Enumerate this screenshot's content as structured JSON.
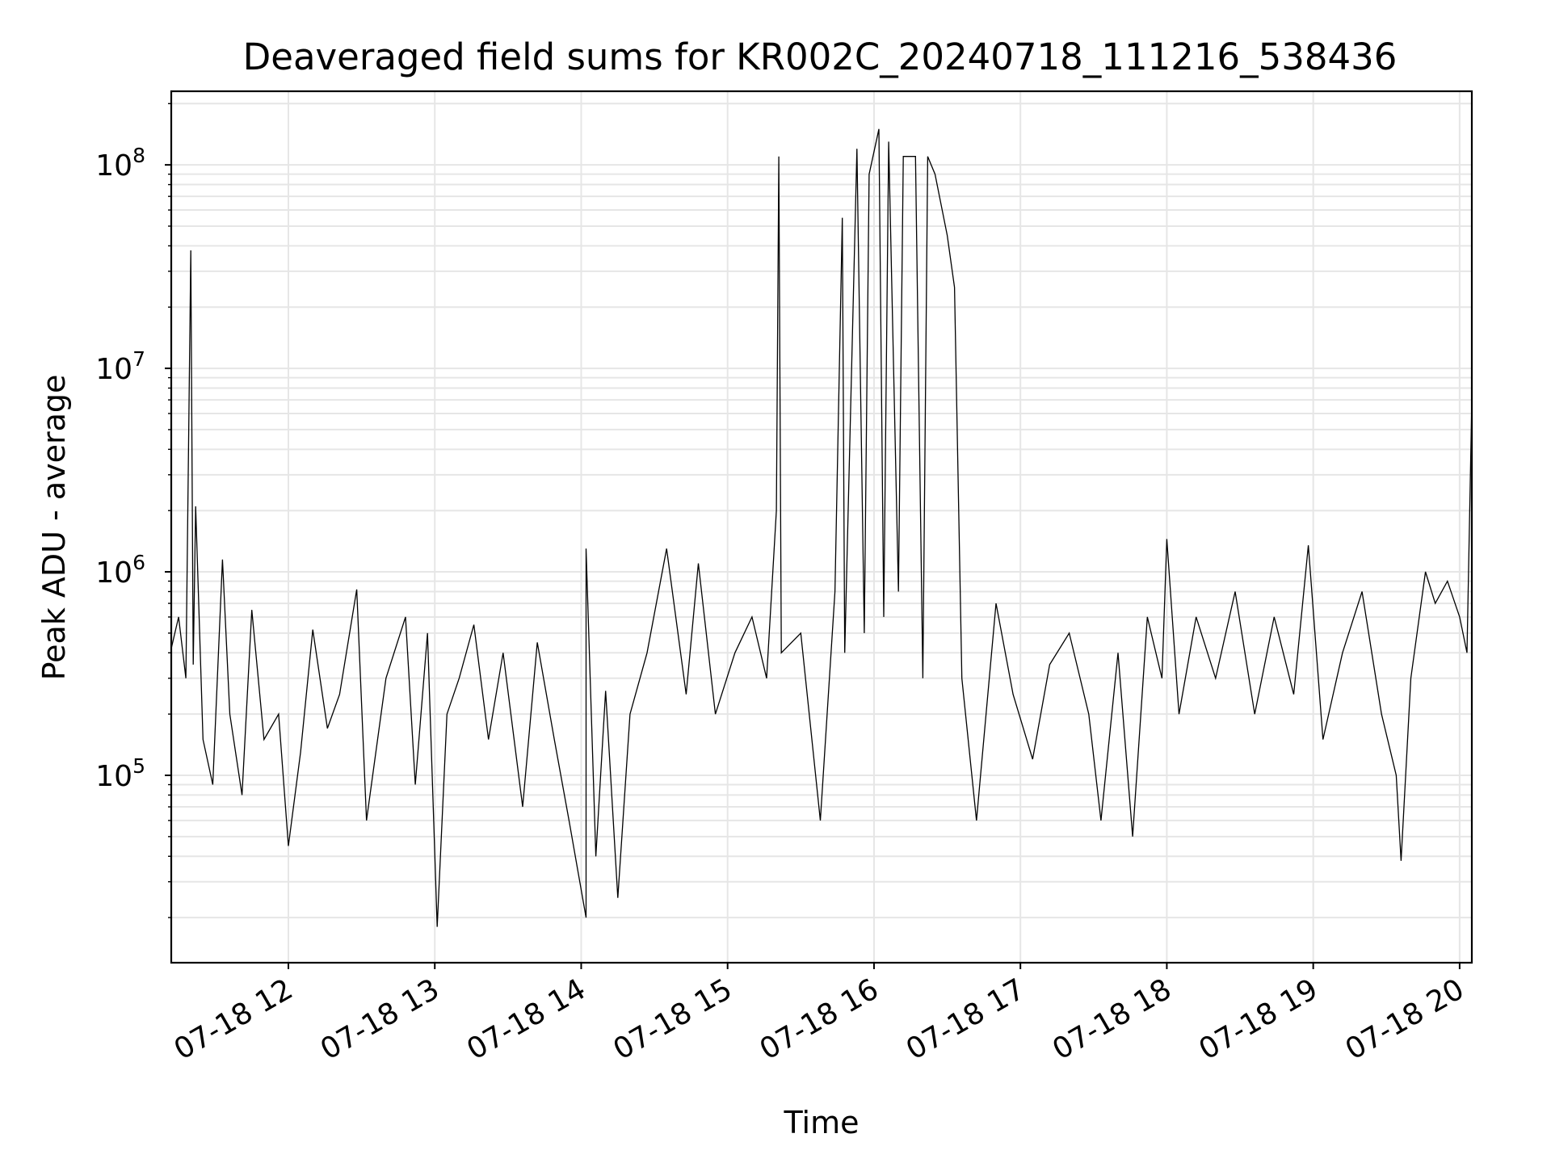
{
  "chart_data": {
    "type": "line",
    "title": "Deaveraged field sums for KR002C_20240718_111216_538436",
    "xlabel": "Time",
    "ylabel": "Peak ADU - average",
    "yscale": "log",
    "ylim": [
      12000,
      230000000
    ],
    "xlim": [
      "07-18 11:12",
      "07-18 20:05"
    ],
    "grid": true,
    "line_color": "#000000",
    "grid_color": "#e6e6e6",
    "x_ticks": [
      {
        "time": "07-18 12:00",
        "label": "07-18 12"
      },
      {
        "time": "07-18 13:00",
        "label": "07-18 13"
      },
      {
        "time": "07-18 14:00",
        "label": "07-18 14"
      },
      {
        "time": "07-18 15:00",
        "label": "07-18 15"
      },
      {
        "time": "07-18 16:00",
        "label": "07-18 16"
      },
      {
        "time": "07-18 17:00",
        "label": "07-18 17"
      },
      {
        "time": "07-18 18:00",
        "label": "07-18 18"
      },
      {
        "time": "07-18 19:00",
        "label": "07-18 19"
      },
      {
        "time": "07-18 20:00",
        "label": "07-18 20"
      }
    ],
    "y_ticks": [
      {
        "value": 100000,
        "base": "10",
        "exp": "5"
      },
      {
        "value": 1000000,
        "base": "10",
        "exp": "6"
      },
      {
        "value": 10000000,
        "base": "10",
        "exp": "7"
      },
      {
        "value": 100000000,
        "base": "10",
        "exp": "8"
      }
    ],
    "series": [
      {
        "points": [
          [
            "07-18 11:12",
            420000
          ],
          [
            "07-18 11:15",
            600000
          ],
          [
            "07-18 11:18",
            300000
          ],
          [
            "07-18 11:20",
            38000000
          ],
          [
            "07-18 11:21",
            350000
          ],
          [
            "07-18 11:22",
            2100000
          ],
          [
            "07-18 11:25",
            150000
          ],
          [
            "07-18 11:29",
            90000
          ],
          [
            "07-18 11:33",
            1150000
          ],
          [
            "07-18 11:36",
            200000
          ],
          [
            "07-18 11:41",
            80000
          ],
          [
            "07-18 11:45",
            650000
          ],
          [
            "07-18 11:50",
            150000
          ],
          [
            "07-18 11:56",
            200000
          ],
          [
            "07-18 12:00",
            45000
          ],
          [
            "07-18 12:05",
            130000
          ],
          [
            "07-18 12:10",
            520000
          ],
          [
            "07-18 12:16",
            170000
          ],
          [
            "07-18 12:21",
            250000
          ],
          [
            "07-18 12:28",
            820000
          ],
          [
            "07-18 12:32",
            60000
          ],
          [
            "07-18 12:40",
            300000
          ],
          [
            "07-18 12:48",
            600000
          ],
          [
            "07-18 12:52",
            90000
          ],
          [
            "07-18 12:57",
            500000
          ],
          [
            "07-18 13:01",
            18000
          ],
          [
            "07-18 13:05",
            200000
          ],
          [
            "07-18 13:10",
            300000
          ],
          [
            "07-18 13:16",
            550000
          ],
          [
            "07-18 13:22",
            150000
          ],
          [
            "07-18 13:28",
            400000
          ],
          [
            "07-18 13:36",
            70000
          ],
          [
            "07-18 13:42",
            450000
          ],
          [
            "07-18 13:49",
            150000
          ],
          [
            "07-18 13:55",
            60000
          ],
          [
            "07-18 14:02",
            20000
          ],
          [
            "07-18 14:02",
            1300000
          ],
          [
            "07-18 14:06",
            40000
          ],
          [
            "07-18 14:10",
            260000
          ],
          [
            "07-18 14:15",
            25000
          ],
          [
            "07-18 14:20",
            200000
          ],
          [
            "07-18 14:27",
            400000
          ],
          [
            "07-18 14:35",
            1300000
          ],
          [
            "07-18 14:43",
            250000
          ],
          [
            "07-18 14:48",
            1100000
          ],
          [
            "07-18 14:55",
            200000
          ],
          [
            "07-18 15:03",
            400000
          ],
          [
            "07-18 15:10",
            600000
          ],
          [
            "07-18 15:16",
            300000
          ],
          [
            "07-18 15:20",
            2000000
          ],
          [
            "07-18 15:21",
            110000000
          ],
          [
            "07-18 15:22",
            400000
          ],
          [
            "07-18 15:30",
            500000
          ],
          [
            "07-18 15:38",
            60000
          ],
          [
            "07-18 15:44",
            800000
          ],
          [
            "07-18 15:47",
            55000000
          ],
          [
            "07-18 15:48",
            400000
          ],
          [
            "07-18 15:53",
            120000000
          ],
          [
            "07-18 15:56",
            500000
          ],
          [
            "07-18 15:58",
            90000000
          ],
          [
            "07-18 16:02",
            150000000
          ],
          [
            "07-18 16:04",
            600000
          ],
          [
            "07-18 16:06",
            130000000
          ],
          [
            "07-18 16:10",
            800000
          ],
          [
            "07-18 16:12",
            110000000
          ],
          [
            "07-18 16:17",
            110000000
          ],
          [
            "07-18 16:20",
            300000
          ],
          [
            "07-18 16:22",
            110000000
          ],
          [
            "07-18 16:25",
            90000000
          ],
          [
            "07-18 16:30",
            45000000
          ],
          [
            "07-18 16:33",
            25000000
          ],
          [
            "07-18 16:36",
            300000
          ],
          [
            "07-18 16:42",
            60000
          ],
          [
            "07-18 16:50",
            700000
          ],
          [
            "07-18 16:57",
            250000
          ],
          [
            "07-18 17:05",
            120000
          ],
          [
            "07-18 17:12",
            350000
          ],
          [
            "07-18 17:20",
            500000
          ],
          [
            "07-18 17:28",
            200000
          ],
          [
            "07-18 17:33",
            60000
          ],
          [
            "07-18 17:40",
            400000
          ],
          [
            "07-18 17:46",
            50000
          ],
          [
            "07-18 17:52",
            600000
          ],
          [
            "07-18 17:58",
            300000
          ],
          [
            "07-18 18:00",
            1450000
          ],
          [
            "07-18 18:05",
            200000
          ],
          [
            "07-18 18:12",
            600000
          ],
          [
            "07-18 18:20",
            300000
          ],
          [
            "07-18 18:28",
            800000
          ],
          [
            "07-18 18:36",
            200000
          ],
          [
            "07-18 18:44",
            600000
          ],
          [
            "07-18 18:52",
            250000
          ],
          [
            "07-18 18:58",
            1350000
          ],
          [
            "07-18 19:04",
            150000
          ],
          [
            "07-18 19:12",
            400000
          ],
          [
            "07-18 19:20",
            800000
          ],
          [
            "07-18 19:28",
            200000
          ],
          [
            "07-18 19:34",
            100000
          ],
          [
            "07-18 19:36",
            38000
          ],
          [
            "07-18 19:40",
            300000
          ],
          [
            "07-18 19:46",
            1000000
          ],
          [
            "07-18 19:50",
            700000
          ],
          [
            "07-18 19:55",
            900000
          ],
          [
            "07-18 20:00",
            600000
          ],
          [
            "07-18 20:03",
            400000
          ],
          [
            "07-18 20:05",
            7000000
          ]
        ]
      }
    ]
  }
}
